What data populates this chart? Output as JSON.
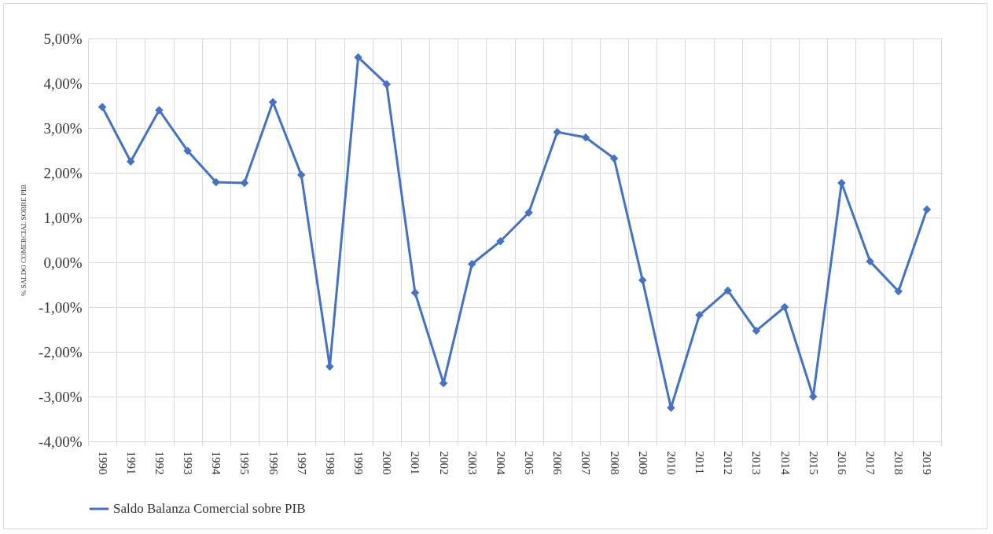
{
  "chart_data": {
    "type": "line",
    "ylabel": "% SALDO COMERCIAL SOBRE PIB",
    "categories": [
      "1990",
      "1991",
      "1992",
      "1993",
      "1994",
      "1995",
      "1996",
      "1997",
      "1998",
      "1999",
      "2000",
      "2001",
      "2002",
      "2003",
      "2004",
      "2005",
      "2006",
      "2007",
      "2008",
      "2009",
      "2010",
      "2011",
      "2012",
      "2013",
      "2014",
      "2015",
      "2016",
      "2017",
      "2018",
      "2019"
    ],
    "series": [
      {
        "name": "Saldo Balanza Comercial sobre PIB",
        "color": "#4472c4",
        "values": [
          3.47,
          2.25,
          3.4,
          2.49,
          1.79,
          1.77,
          3.58,
          1.95,
          -2.33,
          4.58,
          3.98,
          -0.68,
          -2.7,
          -0.04,
          0.47,
          1.11,
          2.91,
          2.79,
          2.32,
          -0.4,
          -3.25,
          -1.18,
          -0.63,
          -1.53,
          -1.0,
          -3.0,
          1.77,
          0.02,
          -0.65,
          1.18
        ]
      }
    ],
    "ylim": [
      -4,
      5
    ],
    "yticks": [
      {
        "value": -4,
        "label": "-4,00%"
      },
      {
        "value": -3,
        "label": "-3,00%"
      },
      {
        "value": -2,
        "label": "-2,00%"
      },
      {
        "value": -1,
        "label": "-1,00%"
      },
      {
        "value": 0,
        "label": "0,00%"
      },
      {
        "value": 1,
        "label": "1,00%"
      },
      {
        "value": 2,
        "label": "2,00%"
      },
      {
        "value": 3,
        "label": "3,00%"
      },
      {
        "value": 4,
        "label": "4,00%"
      },
      {
        "value": 5,
        "label": "5,00%"
      }
    ],
    "grid": true,
    "legend": "bottom",
    "marker": "diamond",
    "line_style": "solid"
  }
}
